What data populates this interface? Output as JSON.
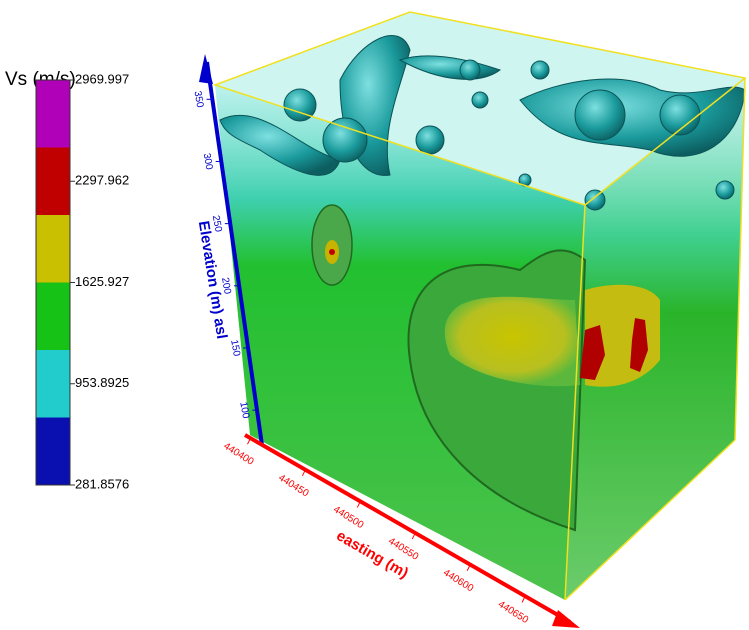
{
  "chart_data": {
    "type": "volume",
    "colorbar": {
      "title": "Vs (m/s)",
      "colors": [
        "#0a0fb0",
        "#22cccc",
        "#16c216",
        "#c8c000",
        "#c00000",
        "#b000b8"
      ],
      "lim": [
        281.8576,
        2969.997
      ],
      "ticks": [
        2969.997,
        2297.962,
        1625.927,
        953.8925,
        281.8576
      ]
    },
    "zaxis": {
      "label": "Elevation (m) asl",
      "lim": [
        80,
        380
      ],
      "ticks": [
        100,
        150,
        200,
        250,
        300,
        350
      ],
      "color": "#0000cc"
    },
    "xaxis": {
      "label": "easting (m)",
      "lim": [
        440395,
        440700
      ],
      "ticks": [
        440400,
        440450,
        440500,
        440550,
        440600,
        440650
      ],
      "color": "#ff0000"
    }
  }
}
